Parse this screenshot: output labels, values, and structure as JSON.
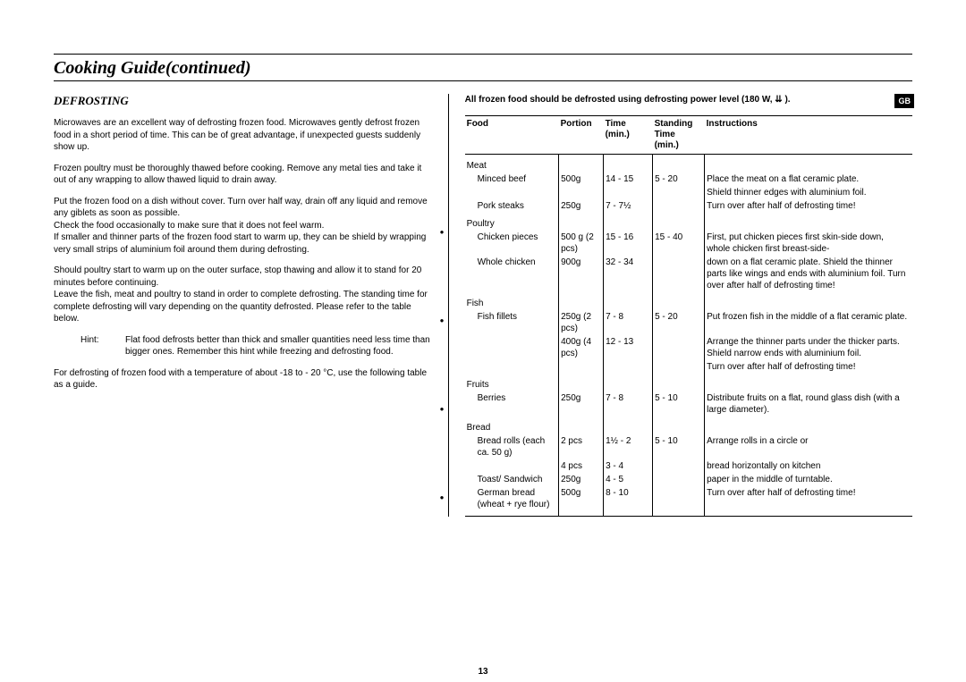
{
  "page": {
    "title": "Cooking Guide(continued)",
    "badge": "GB",
    "page_number": "13"
  },
  "left": {
    "section_title": "DEFROSTING",
    "p1": "Microwaves are an excellent way of defrosting frozen food. Microwaves gently defrost frozen food in a short period of time. This can be of great advantage, if unexpected guests suddenly show up.",
    "p2": "Frozen poultry must be thoroughly thawed before cooking. Remove any metal ties and take it out of any wrapping to allow thawed liquid to drain away.",
    "p3": "Put the frozen food on a dish without cover. Turn over half way, drain off any liquid and remove any giblets as soon as possible.",
    "p4": "Check the food occasionally to make sure that it does not feel warm.",
    "p5": "If smaller and thinner parts of the frozen food start to warm up, they can be shield by wrapping very small strips of aluminium foil around them during defrosting.",
    "p6": "Should poultry start to warm  up on the outer surface, stop thawing and allow it to stand for 20 minutes before continuing.",
    "p7": "Leave the fish, meat and poultry to stand in order to complete defrosting. The standing time for complete defrosting will vary depending on the quantity defrosted. Please refer to the table below.",
    "hint_label": "Hint:",
    "hint_text": "Flat food defrosts better than thick and smaller quantities need less time than bigger ones. Remember this hint while freezing and defrosting food.",
    "p8": "For defrosting  of frozen food with a temperature of about -18 to - 20 °C, use the following table as a guide."
  },
  "right": {
    "intro": "All frozen food should be defrosted using defrosting power level (180 W, ⇊ ).",
    "headers": {
      "c1": "Food",
      "c2": "Portion",
      "c3": "Time (min.)",
      "c4": "Standing Time (min.)",
      "c5": "Instructions"
    },
    "sections": [
      {
        "category": "Meat",
        "rows": [
          {
            "food": "Minced beef",
            "portion": "500g",
            "time": "14  -  15",
            "stand": "5 - 20",
            "instr": "Place the meat on a flat ceramic plate."
          },
          {
            "food": "",
            "portion": "",
            "time": "",
            "stand": "",
            "instr": "Shield thinner edges with aluminium foil."
          },
          {
            "food": "Pork steaks",
            "portion": "250g",
            "time": "7   -  7½",
            "stand": "",
            "instr": "Turn over after half of defrosting time!"
          }
        ]
      },
      {
        "category": "Poultry",
        "rows": [
          {
            "food": "Chicken pieces",
            "portion": "500 g (2 pcs)",
            "time": "15  -  16",
            "stand": "15 - 40",
            "instr": "First, put chicken pieces first skin-side down, whole chicken first breast-side-"
          },
          {
            "food": "Whole chicken",
            "portion": "900g",
            "time": "32  -  34",
            "stand": "",
            "instr": "down on a flat ceramic plate. Shield the thinner parts like wings and ends with aluminium foil. Turn over after half of defrosting time!"
          }
        ]
      },
      {
        "category": "Fish",
        "rows": [
          {
            "food": "Fish fillets",
            "portion": "250g (2 pcs)",
            "time": "7 - 8",
            "stand": "5 - 20",
            "instr": "Put frozen fish in the middle of a flat ceramic plate."
          },
          {
            "food": "",
            "portion": "400g (4 pcs)",
            "time": "12  -  13",
            "stand": "",
            "instr": "Arrange the thinner parts under the thicker parts. Shield narrow ends with aluminium foil."
          },
          {
            "food": "",
            "portion": "",
            "time": "",
            "stand": "",
            "instr": "Turn over after half of defrosting time!"
          }
        ]
      },
      {
        "category": "Fruits",
        "rows": [
          {
            "food": "Berries",
            "portion": "250g",
            "time": "7  -  8",
            "stand": "5 - 10",
            "instr": "Distribute fruits on a flat, round glass dish (with a large diameter)."
          }
        ]
      },
      {
        "category": "Bread",
        "rows": [
          {
            "food": "Bread rolls (each ca. 50 g)",
            "portion": "2 pcs",
            "time": "1½  -  2",
            "stand": "5 - 10",
            "instr": "Arrange rolls in a circle or"
          },
          {
            "food": "",
            "portion": "4 pcs",
            "time": "3  -  4",
            "stand": "",
            "instr": "bread horizontally on kitchen"
          },
          {
            "food": "Toast/ Sandwich",
            "portion": "250g",
            "time": "4  -  5",
            "stand": "",
            "instr": "paper in the middle of turntable."
          },
          {
            "food": "German bread (wheat + rye flour)",
            "portion": "500g",
            "time": "8  -  10",
            "stand": "",
            "instr": "Turn over after half of defrosting time!"
          }
        ]
      }
    ]
  }
}
